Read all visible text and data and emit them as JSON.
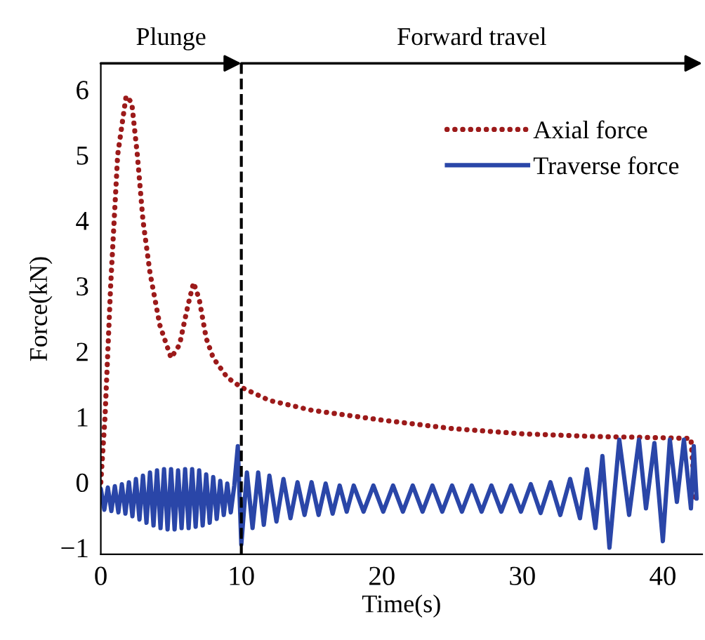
{
  "chart_data": {
    "type": "line",
    "xlabel": "Time(s)",
    "ylabel": "Force(kN)",
    "xlim": [
      0,
      42.8
    ],
    "ylim": [
      -1.1,
      6.4
    ],
    "xticks": [
      0,
      10,
      20,
      30,
      40
    ],
    "yticks": [
      {
        "value": -1,
        "label": "−1"
      },
      0,
      1,
      2,
      3,
      4,
      5,
      6
    ],
    "grid": false,
    "legend": "top right",
    "marker": "none",
    "ref_lines": [
      {
        "axis": "x",
        "value": 10,
        "color": "#000000",
        "line_style": "dashed"
      }
    ],
    "annotations": [
      "Plunge",
      "Forward travel"
    ],
    "series": [
      {
        "name": "Axial force",
        "color": "#9c1a1a",
        "line_style": "dotted",
        "x": [
          0,
          0.3,
          0.7,
          1.2,
          1.8,
          2.2,
          2.6,
          3,
          3.5,
          4.2,
          5,
          5.6,
          6.2,
          6.6,
          7,
          7.5,
          8,
          9,
          10,
          12,
          15,
          20,
          25,
          30,
          35,
          40,
          42,
          42.3
        ],
        "values": [
          0,
          1,
          3,
          5,
          5.9,
          5.8,
          5,
          4,
          3.2,
          2.4,
          1.9,
          2.1,
          2.7,
          3.05,
          2.8,
          2.2,
          1.9,
          1.6,
          1.45,
          1.25,
          1.1,
          0.95,
          0.82,
          0.74,
          0.7,
          0.68,
          0.67,
          -0.25
        ]
      },
      {
        "name": "Traverse force",
        "color": "#2a46a8",
        "line_style": "solid",
        "x": [
          0,
          0.25,
          0.5,
          0.75,
          1,
          1.25,
          1.5,
          1.75,
          2,
          2.25,
          2.5,
          2.75,
          3,
          3.25,
          3.5,
          3.75,
          4,
          4.25,
          4.5,
          4.75,
          5,
          5.25,
          5.5,
          5.75,
          6,
          6.25,
          6.5,
          6.75,
          7,
          7.25,
          7.5,
          7.75,
          8,
          8.25,
          8.5,
          8.75,
          9,
          9.25,
          9.5,
          9.75,
          10,
          10.4,
          10.8,
          11.2,
          11.6,
          12,
          12.5,
          13,
          13.5,
          14,
          14.5,
          15,
          15.5,
          16,
          16.5,
          17,
          17.5,
          18,
          18.7,
          19.4,
          20.1,
          20.8,
          21.5,
          22.2,
          22.9,
          23.6,
          24.3,
          25,
          25.7,
          26.4,
          27.1,
          27.8,
          28.5,
          29.2,
          29.9,
          30.6,
          31.3,
          32,
          32.7,
          33.4,
          34.1,
          34.6,
          35.2,
          35.7,
          36.2,
          36.9,
          37.6,
          38.3,
          38.8,
          39.4,
          40.0,
          40.5,
          41.0,
          41.5,
          42.0,
          42.2,
          42.4
        ],
        "values": [
          -0.1,
          -0.42,
          -0.08,
          -0.44,
          -0.06,
          -0.46,
          -0.03,
          -0.48,
          0.0,
          -0.52,
          0.05,
          -0.57,
          0.1,
          -0.62,
          0.15,
          -0.66,
          0.18,
          -0.7,
          0.2,
          -0.72,
          0.2,
          -0.72,
          0.18,
          -0.7,
          0.2,
          -0.7,
          0.2,
          -0.68,
          0.18,
          -0.66,
          0.12,
          -0.62,
          0.08,
          -0.56,
          0.02,
          -0.5,
          -0.02,
          -0.46,
          -0.05,
          0.55,
          -0.95,
          0.15,
          -0.7,
          0.15,
          -0.65,
          0.1,
          -0.6,
          0.05,
          -0.55,
          0.0,
          -0.5,
          0.0,
          -0.5,
          -0.02,
          -0.48,
          -0.05,
          -0.45,
          -0.05,
          -0.45,
          -0.05,
          -0.45,
          -0.05,
          -0.45,
          -0.05,
          -0.45,
          -0.05,
          -0.45,
          -0.05,
          -0.45,
          -0.05,
          -0.45,
          -0.05,
          -0.45,
          -0.05,
          -0.45,
          -0.03,
          -0.47,
          0.0,
          -0.5,
          0.05,
          -0.55,
          0.2,
          -0.7,
          0.4,
          -1.0,
          0.65,
          -0.5,
          0.65,
          -0.4,
          0.6,
          -0.9,
          0.65,
          -0.3,
          0.65,
          -0.4,
          0.55,
          -0.25
        ]
      }
    ]
  }
}
